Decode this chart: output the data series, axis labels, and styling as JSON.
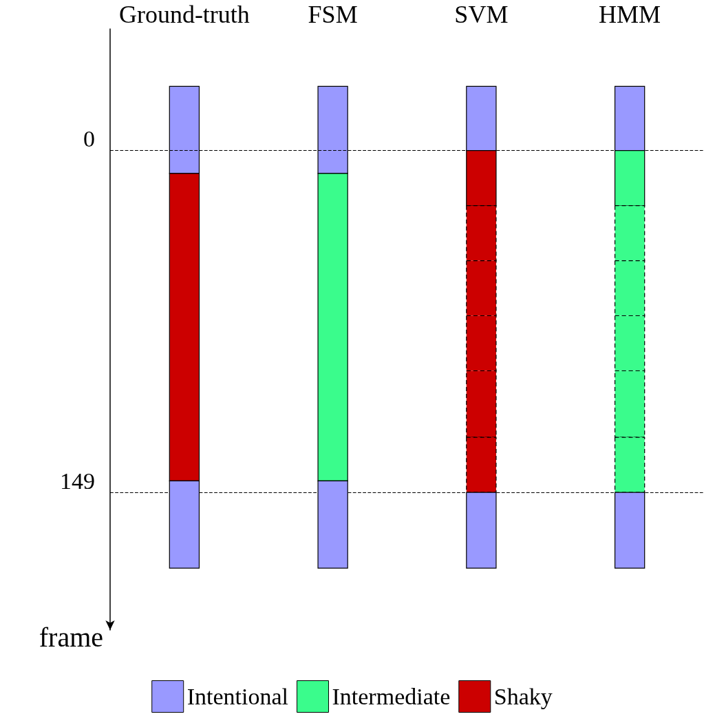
{
  "chart_data": {
    "type": "bar",
    "categories": [
      "Ground-truth",
      "FSM",
      "SVM",
      "HMM"
    ],
    "ylabel": "frame",
    "ylim": [
      209,
      -53
    ],
    "yticks": [
      0,
      149
    ],
    "legend": "bottom",
    "series": [
      {
        "name": "Intentional",
        "color": "#9999ff",
        "base": [
          -28,
          -28,
          -28,
          -28
        ],
        "values": [
          38,
          38,
          28,
          28
        ],
        "line_style": "solid"
      },
      {
        "name": "Intermediate",
        "color": "#3afc8c",
        "base": [
          null,
          10,
          null,
          0
        ],
        "values": [
          null,
          134,
          null,
          24
        ],
        "line_style": "solid"
      },
      {
        "name": "Shaky",
        "color": "#cc0000",
        "base": [
          10,
          null,
          0,
          null
        ],
        "values": [
          134,
          null,
          24,
          null
        ],
        "line_style": "solid"
      },
      {
        "colors": [
          null,
          null,
          "#cc0000",
          "#3afc8c"
        ],
        "base": [
          null,
          null,
          24,
          24
        ],
        "values": [
          null,
          null,
          24,
          24
        ],
        "line_style": "dashed"
      },
      {
        "colors": [
          null,
          null,
          "#cc0000",
          "#3afc8c"
        ],
        "base": [
          null,
          null,
          48,
          48
        ],
        "values": [
          null,
          null,
          24,
          24
        ],
        "line_style": "dashed"
      },
      {
        "colors": [
          null,
          null,
          "#cc0000",
          "#3afc8c"
        ],
        "base": [
          null,
          null,
          72,
          72
        ],
        "values": [
          null,
          null,
          24,
          24
        ],
        "line_style": "dashed"
      },
      {
        "colors": [
          null,
          null,
          "#cc0000",
          "#3afc8c"
        ],
        "base": [
          null,
          null,
          96,
          96
        ],
        "values": [
          null,
          null,
          29,
          29
        ],
        "line_style": "dashed"
      },
      {
        "colors": [
          null,
          null,
          "#cc0000",
          "#3afc8c"
        ],
        "base": [
          null,
          null,
          125,
          125
        ],
        "values": [
          null,
          null,
          24,
          24
        ],
        "line_style": "dashed"
      },
      {
        "color": "#9999ff",
        "base": [
          144,
          144,
          149,
          149
        ],
        "values": [
          38,
          38,
          33,
          33
        ],
        "line_style": "solid"
      }
    ],
    "ref_lines": [
      {
        "axis": "y",
        "value": 0,
        "line_style": "dashed"
      },
      {
        "axis": "y",
        "value": 149,
        "line_style": "dashed"
      }
    ]
  }
}
